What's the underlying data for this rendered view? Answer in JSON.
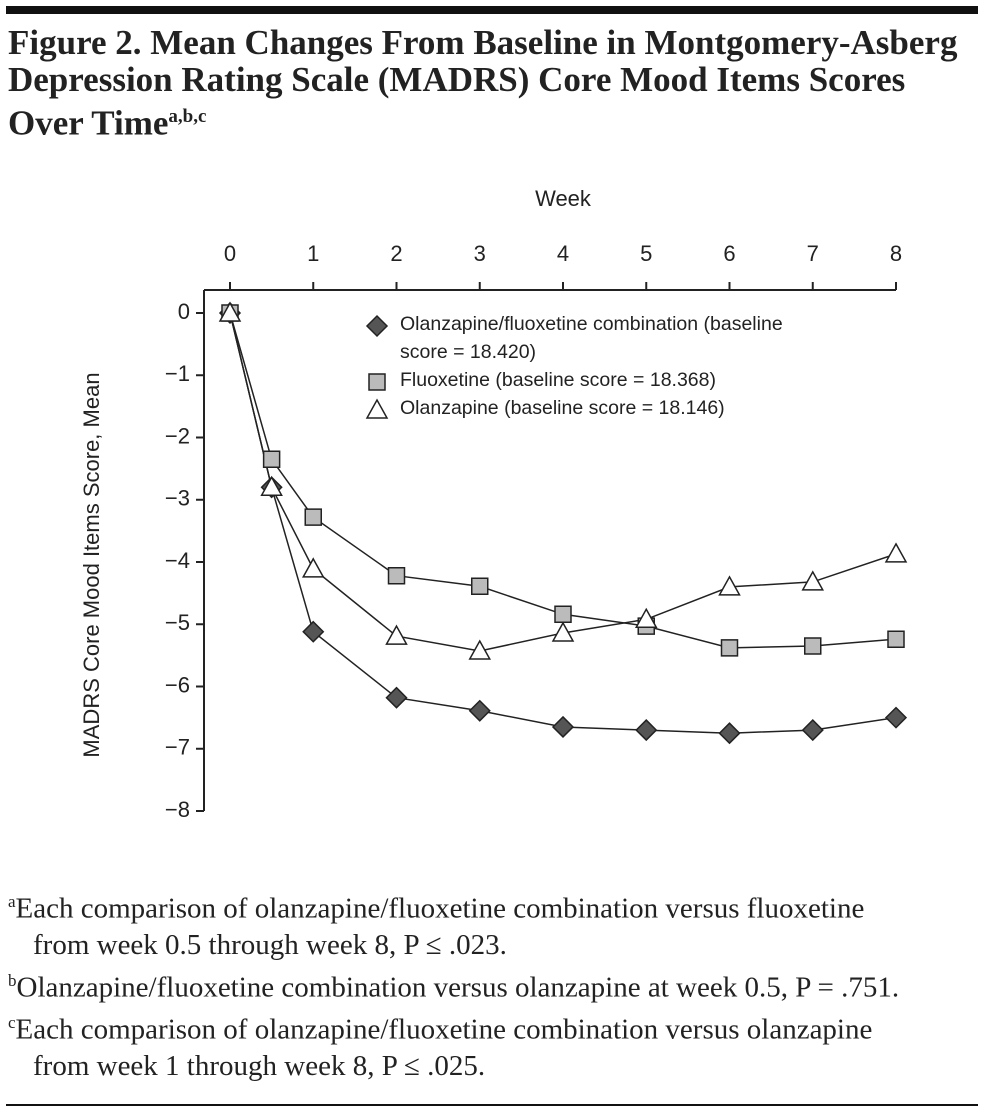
{
  "chart_data": {
    "type": "line",
    "title": "Figure 2. Mean Changes From Baseline in Montgomery-Asberg Depression Rating Scale (MADRS) Core Mood Items Scores Over Time",
    "title_superscript": "a,b,c",
    "x_label": "Week",
    "y_label": "MADRS Core Mood Items Score, Mean",
    "x": [
      0,
      0.5,
      1,
      2,
      3,
      4,
      5,
      6,
      7,
      8
    ],
    "xlim": [
      0,
      8
    ],
    "xticks": [
      0,
      1,
      2,
      3,
      4,
      5,
      6,
      7,
      8
    ],
    "ylim": [
      -8,
      0
    ],
    "yticks": [
      {
        "value": 0,
        "label": "0"
      },
      {
        "value": -1,
        "label": "−1"
      },
      {
        "value": -2,
        "label": "−2"
      },
      {
        "value": -3,
        "label": "−3"
      },
      {
        "value": -4,
        "label": "−4"
      },
      {
        "value": -5,
        "label": "−5"
      },
      {
        "value": -6,
        "label": "−6"
      },
      {
        "value": -7,
        "label": "−7"
      },
      {
        "value": -8,
        "label": "−8"
      }
    ],
    "x_axis_position": "top",
    "grid": false,
    "legend_position": "upper right",
    "series": [
      {
        "name": "Olanzapine/fluoxetine combination (baseline score = 18.420)",
        "color": "#555555",
        "marker": "diamond",
        "values": [
          0,
          -2.8,
          -5.12,
          -6.18,
          -6.39,
          -6.65,
          -6.7,
          -6.75,
          -6.7,
          -6.5
        ]
      },
      {
        "name": "Fluoxetine (baseline score = 18.368)",
        "color": "#bbbbbb",
        "marker": "square",
        "values": [
          0,
          -2.35,
          -3.28,
          -4.22,
          -4.39,
          -4.84,
          -5.03,
          -5.38,
          -5.35,
          -5.24
        ]
      },
      {
        "name": "Olanzapine (baseline score = 18.146)",
        "color": "#ffffff",
        "marker": "triangle",
        "values": [
          0,
          -2.8,
          -4.11,
          -5.19,
          -5.43,
          -5.14,
          -4.92,
          -4.4,
          -4.32,
          -3.87
        ]
      }
    ],
    "footnotes": [
      {
        "marker": "a",
        "text": "Each comparison of olanzapine/fluoxetine combination versus fluoxetine from week 0.5 through week 8, P ≤ .023."
      },
      {
        "marker": "b",
        "text": "Olanzapine/fluoxetine combination versus olanzapine at week 0.5, P = .751."
      },
      {
        "marker": "c",
        "text": "Each comparison of olanzapine/fluoxetine combination versus olanzapine from week 1 through week 8, P ≤ .025."
      }
    ]
  }
}
